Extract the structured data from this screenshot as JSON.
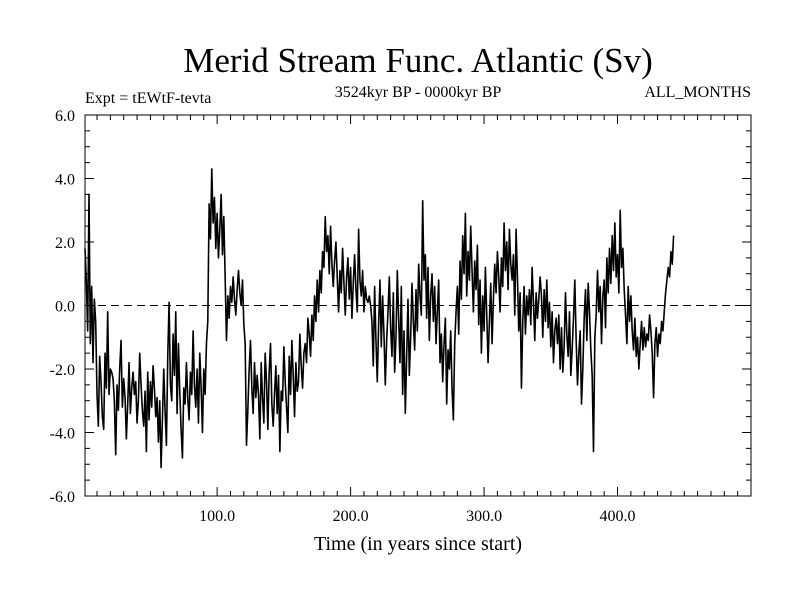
{
  "chart_data": {
    "type": "line",
    "title": "Merid Stream Func. Atlantic (Sv)",
    "subtitle_left": "Expt = tEWtF-tevta",
    "subtitle_center": "3524kyr BP - 0000kyr BP",
    "subtitle_right": "ALL_MONTHS",
    "xlabel": "Time (in years since start)",
    "ylabel": "",
    "xlim": [
      1,
      500
    ],
    "ylim": [
      -6,
      6
    ],
    "x_ticks": [
      100,
      200,
      300,
      400
    ],
    "x_tick_labels": [
      "100.0",
      "200.0",
      "300.0",
      "400.0"
    ],
    "y_ticks": [
      -6,
      -4,
      -2,
      0,
      2,
      4,
      6
    ],
    "y_tick_labels": [
      "-6.0",
      "-4.0",
      "-2.0",
      "0.0",
      "2.0",
      "4.0",
      "6.0"
    ],
    "reference_line": {
      "y": 0,
      "style": "dashed"
    },
    "series": [
      {
        "name": "Merid Stream Func. Atlantic",
        "x_start": 1,
        "x_step": 1,
        "values": [
          1.8,
          0.8,
          -0.8,
          3.5,
          -1.2,
          0.6,
          -1.8,
          0.2,
          -0.5,
          -2.8,
          -3.8,
          -1.6,
          -2.4,
          -3.5,
          -3.9,
          -1.5,
          -2.6,
          -0.2,
          -2.8,
          -2.0,
          -2.1,
          -2.3,
          -3.0,
          -4.7,
          -2.5,
          -3.3,
          -2.0,
          -1.1,
          -3.2,
          -2.3,
          -2.9,
          -4.2,
          -3.1,
          -1.8,
          -3.4,
          -2.6,
          -2.1,
          -2.8,
          -2.4,
          -3.7,
          -3.0,
          -1.5,
          -2.5,
          -3.3,
          -3.8,
          -2.7,
          -4.6,
          -2.1,
          -3.6,
          -2.4,
          -3.2,
          -1.9,
          -2.6,
          -3.5,
          -2.9,
          -4.3,
          -3.0,
          -5.1,
          -3.6,
          -2.0,
          -3.3,
          -4.4,
          -1.6,
          0.1,
          -2.5,
          -3.0,
          -0.9,
          -2.2,
          -0.2,
          -3.4,
          -1.2,
          -2.7,
          -3.9,
          -4.8,
          -2.6,
          -3.1,
          -1.8,
          -2.9,
          -3.6,
          -2.1,
          -2.8,
          -0.8,
          -2.5,
          -3.2,
          -2.0,
          -3.7,
          -1.5,
          -2.6,
          -4.0,
          -2.0,
          -2.8,
          -1.2,
          -0.5,
          3.2,
          2.1,
          4.3,
          2.6,
          3.4,
          1.8,
          2.9,
          1.5,
          2.4,
          3.5,
          1.6,
          2.8,
          0.9,
          -1.1,
          0.3,
          -0.4,
          0.6,
          0.1,
          0.9,
          0.2,
          -0.3,
          0.5,
          1.1,
          0.4,
          0.0,
          0.8,
          -0.6,
          -1.2,
          -4.4,
          -3.3,
          -2.0,
          -1.1,
          -2.6,
          -3.4,
          -1.8,
          -2.9,
          -2.2,
          -2.8,
          -4.2,
          -1.8,
          -2.9,
          -3.7,
          -1.5,
          -2.4,
          -3.9,
          -2.1,
          -1.2,
          -3.1,
          -3.8,
          -2.8,
          -1.9,
          -3.4,
          -2.2,
          -4.6,
          -2.7,
          -3.0,
          -1.3,
          -2.4,
          -3.2,
          -4.0,
          -1.6,
          -2.8,
          -1.1,
          -2.2,
          -3.5,
          -1.8,
          -2.7,
          -2.4,
          -0.9,
          -1.9,
          -2.6,
          -1.5,
          -1.2,
          -1.8,
          -0.4,
          -0.9,
          -1.6,
          -0.3,
          -1.1,
          0.3,
          -0.5,
          0.8,
          -0.2,
          1.1,
          0.4,
          1.7,
          1.2,
          2.8,
          1.7,
          2.2,
          1.0,
          2.5,
          1.3,
          0.6,
          1.4,
          2.0,
          0.9,
          -0.2,
          1.1,
          0.4,
          1.8,
          0.7,
          -0.3,
          0.9,
          1.5,
          0.2,
          1.2,
          -0.4,
          0.7,
          1.6,
          0.5,
          -0.2,
          2.4,
          0.8,
          0.3,
          1.1,
          -0.2,
          0.6,
          0.2,
          0.1,
          0.3,
          0.0,
          -0.5,
          -1.9,
          0.6,
          -1.1,
          -2.4,
          -0.6,
          0.8,
          -1.3,
          0.3,
          -0.9,
          -2.5,
          -1.1,
          -0.2,
          0.9,
          -0.7,
          -1.6,
          0.4,
          -2.1,
          -1.0,
          1.1,
          -0.4,
          -1.8,
          0.6,
          -2.8,
          -0.8,
          -3.4,
          -1.6,
          0.2,
          -2.2,
          -1.0,
          0.7,
          -0.5,
          -1.4,
          0.5,
          -0.8,
          1.3,
          0.3,
          -0.3,
          3.3,
          0.8,
          1.6,
          -0.4,
          1.2,
          -1.1,
          0.3,
          1.0,
          -0.5,
          0.6,
          -1.2,
          -0.2,
          0.8,
          -1.8,
          -0.9,
          -2.4,
          -1.2,
          -0.4,
          -3.1,
          -1.4,
          -2.0,
          -0.8,
          -2.6,
          -3.6,
          -1.2,
          -0.2,
          0.6,
          -0.9,
          1.4,
          0.2,
          2.2,
          1.0,
          2.9,
          0.3,
          1.7,
          0.8,
          2.5,
          1.1,
          -0.2,
          1.4,
          0.5,
          1.9,
          -0.6,
          0.8,
          -1.5,
          0.3,
          -0.8,
          1.2,
          -0.3,
          -1.8,
          -0.5,
          0.7,
          -1.2,
          0.2,
          1.3,
          0.4,
          1.7,
          0.9,
          -0.2,
          1.5,
          0.6,
          2.6,
          1.1,
          2.0,
          0.5,
          2.4,
          1.3,
          0.8,
          1.6,
          -0.3,
          2.4,
          0.9,
          -0.8,
          0.4,
          -2.6,
          -0.5,
          0.6,
          -0.9,
          0.3,
          -0.3,
          0.5,
          -0.6,
          1.2,
          0.1,
          -1.1,
          0.4,
          -0.4,
          0.2,
          0.9,
          0.3,
          -1.0,
          0.5,
          -0.5,
          0.8,
          -0.7,
          0.1,
          -1.3,
          -0.2,
          -1.8,
          -0.8,
          -0.4,
          -1.2,
          -0.3,
          -2.0,
          -0.7,
          -2.1,
          -1.3,
          0.4,
          -0.9,
          -1.6,
          -0.2,
          -2.2,
          -1.4,
          -0.4,
          0.8,
          -1.1,
          -2.5,
          -1.5,
          -0.8,
          -3.1,
          -2.0,
          -0.4,
          0.5,
          -1.1,
          0.7,
          -0.2,
          -1.4,
          -2.2,
          -4.6,
          -1.0,
          -0.3,
          1.1,
          -0.2,
          0.6,
          -1.2,
          0.3,
          0.8,
          -0.7,
          1.5,
          0.4,
          1.8,
          0.7,
          2.2,
          1.1,
          2.6,
          0.9,
          1.6,
          0.4,
          3.0,
          1.2,
          1.8,
          0.5,
          -0.3,
          -1.2,
          0.6,
          -0.5,
          0.3,
          -0.8,
          -1.4,
          -0.4,
          -1.6,
          -1.0,
          -2.0,
          -1.2,
          -0.5,
          -1.4,
          -0.7,
          -1.3,
          -0.9,
          -1.1,
          -0.3,
          -0.8,
          -1.5,
          -2.9,
          -1.2,
          -0.7,
          -1.6,
          -0.9,
          -1.2,
          -0.5,
          -0.8,
          -0.2,
          0.4,
          0.8,
          1.2,
          0.9,
          1.7,
          1.3,
          2.2
        ]
      }
    ]
  }
}
